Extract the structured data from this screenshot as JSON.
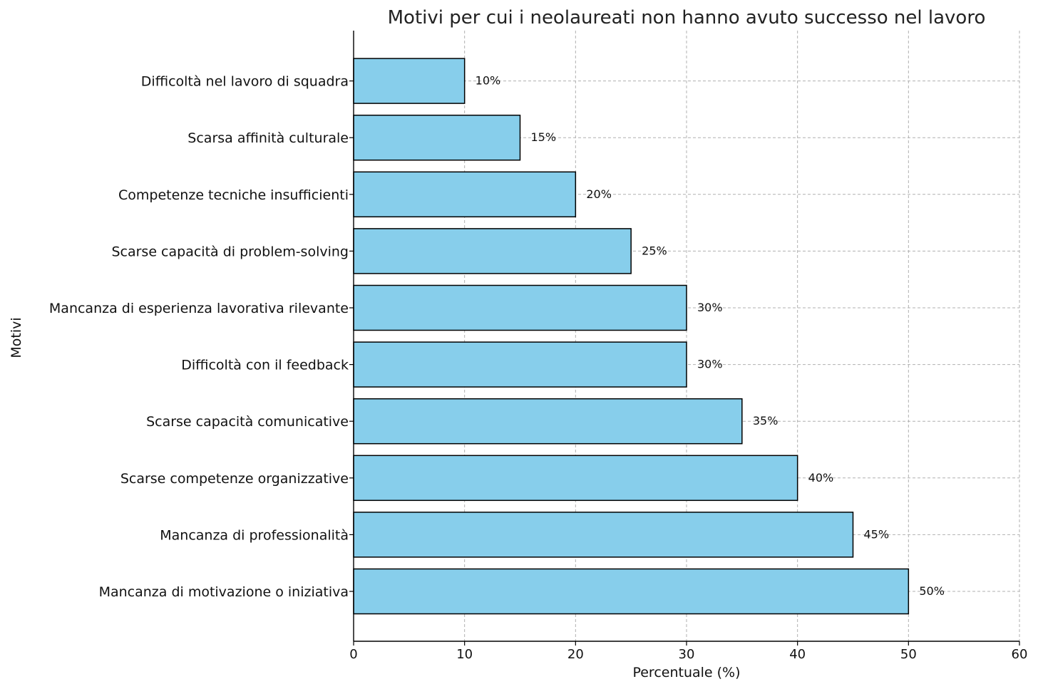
{
  "chart_data": {
    "type": "bar",
    "orientation": "horizontal",
    "title": "Motivi per cui i neolaureati non hanno avuto successo nel lavoro",
    "xlabel": "Percentuale (%)",
    "ylabel": "Motivi",
    "xlim": [
      0,
      60
    ],
    "xticks": [
      0,
      10,
      20,
      30,
      40,
      50,
      60
    ],
    "grid": true,
    "bar_color": "#87CEEB",
    "edge_color": "#000000",
    "categories": [
      "Mancanza di motivazione o iniziativa",
      "Mancanza di professionalità",
      "Scarse competenze organizzative",
      "Scarse capacità comunicative",
      "Difficoltà con il feedback",
      "Mancanza di esperienza lavorativa rilevante",
      "Scarse capacità di problem-solving",
      "Competenze tecniche insufficienti",
      "Scarsa affinità culturale",
      "Difficoltà nel lavoro di squadra"
    ],
    "values": [
      50,
      45,
      40,
      35,
      30,
      30,
      25,
      20,
      15,
      10
    ],
    "value_labels": [
      "50%",
      "45%",
      "40%",
      "35%",
      "30%",
      "30%",
      "25%",
      "20%",
      "15%",
      "10%"
    ]
  }
}
